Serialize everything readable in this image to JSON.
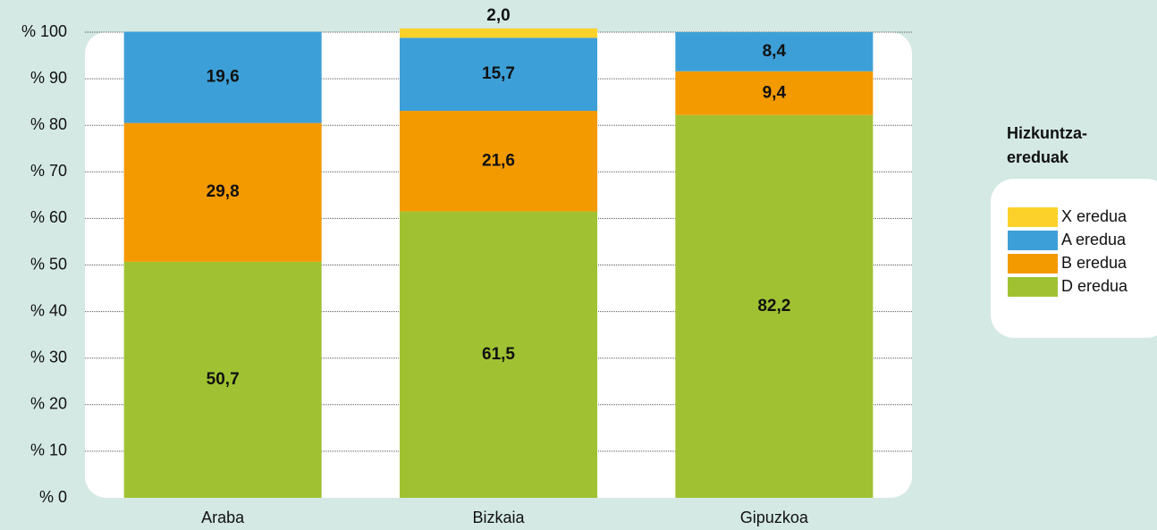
{
  "chart_data": {
    "type": "stacked_bar",
    "categories": [
      "Araba",
      "Bizkaia",
      "Gipuzkoa"
    ],
    "series": [
      {
        "name": "D eredua",
        "color": "#a0c232",
        "values": [
          50.7,
          61.5,
          82.2
        ],
        "value_labels": [
          "50,7",
          "61,5",
          "82,2"
        ]
      },
      {
        "name": "B eredua",
        "color": "#f39a00",
        "values": [
          29.8,
          21.6,
          9.4
        ],
        "value_labels": [
          "29,8",
          "21,6",
          "9,4"
        ]
      },
      {
        "name": "A eredua",
        "color": "#3d9fd8",
        "values": [
          19.6,
          15.7,
          8.4
        ],
        "value_labels": [
          "19,6",
          "15,7",
          "8,4"
        ]
      },
      {
        "name": "X eredua",
        "color": "#fcd12a",
        "values": [
          null,
          2.0,
          null
        ],
        "value_labels": [
          null,
          "2,0",
          null
        ]
      }
    ],
    "ylim": [
      0,
      100
    ],
    "yticks": [
      {
        "value": 0,
        "label": "% 0"
      },
      {
        "value": 10,
        "label": "% 10"
      },
      {
        "value": 20,
        "label": "% 20"
      },
      {
        "value": 30,
        "label": "% 30"
      },
      {
        "value": 40,
        "label": "% 40"
      },
      {
        "value": 50,
        "label": "% 50"
      },
      {
        "value": 60,
        "label": "% 60"
      },
      {
        "value": 70,
        "label": "% 70"
      },
      {
        "value": 80,
        "label": "% 80"
      },
      {
        "value": 90,
        "label": "% 90"
      },
      {
        "value": 100,
        "label": "% 100"
      }
    ],
    "grid": true,
    "legend_title": [
      "Hizkuntza-",
      "ereduak"
    ],
    "legend_position": "right"
  }
}
